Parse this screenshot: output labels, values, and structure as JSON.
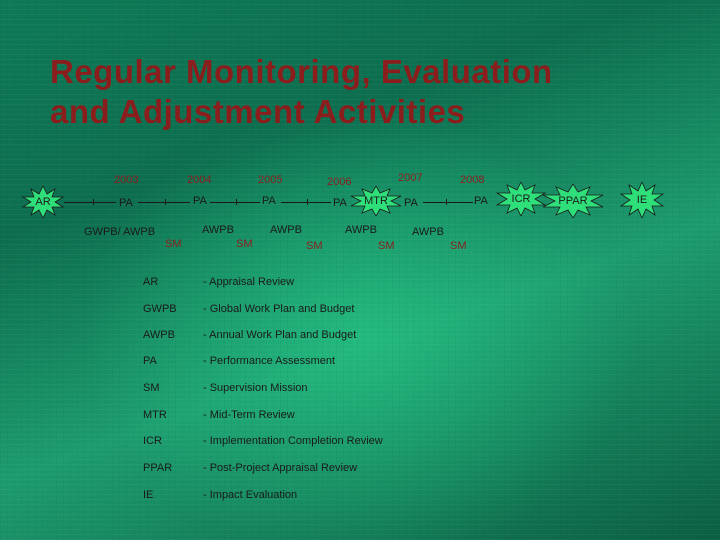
{
  "title": {
    "line1": "Regular Monitoring, Evaluation",
    "line2": "and Adjustment Activities"
  },
  "timeline": {
    "years": [
      "2003",
      "2004",
      "2005",
      "2006",
      "2007",
      "2008"
    ],
    "pa_label": "PA",
    "sm_label": "SM",
    "awpb_label": "AWPB",
    "gwpb_label": "GWPB/ AWPB",
    "milestones": {
      "ar": "AR",
      "mtr": "MTR",
      "icr": "ICR",
      "ppar": "PPAR",
      "ie": "IE"
    }
  },
  "legend": [
    {
      "abbr": "AR",
      "definition": "- Appraisal Review"
    },
    {
      "abbr": "GWPB",
      "definition": "- Global Work Plan and Budget"
    },
    {
      "abbr": "AWPB",
      "definition": "- Annual Work Plan and Budget"
    },
    {
      "abbr": "PA",
      "definition": "- Performance Assessment"
    },
    {
      "abbr": "SM",
      "definition": "- Supervision Mission"
    },
    {
      "abbr": "MTR",
      "definition": "- Mid-Term Review"
    },
    {
      "abbr": "ICR",
      "definition": "- Implementation Completion Review"
    },
    {
      "abbr": "PPAR",
      "definition": "- Post-Project Appraisal Review"
    },
    {
      "abbr": "IE",
      "definition": "- Impact Evaluation"
    }
  ],
  "colors": {
    "title": "#8c1d1d",
    "star_fill": "#2fe07a",
    "text": "#1a1a1a"
  }
}
